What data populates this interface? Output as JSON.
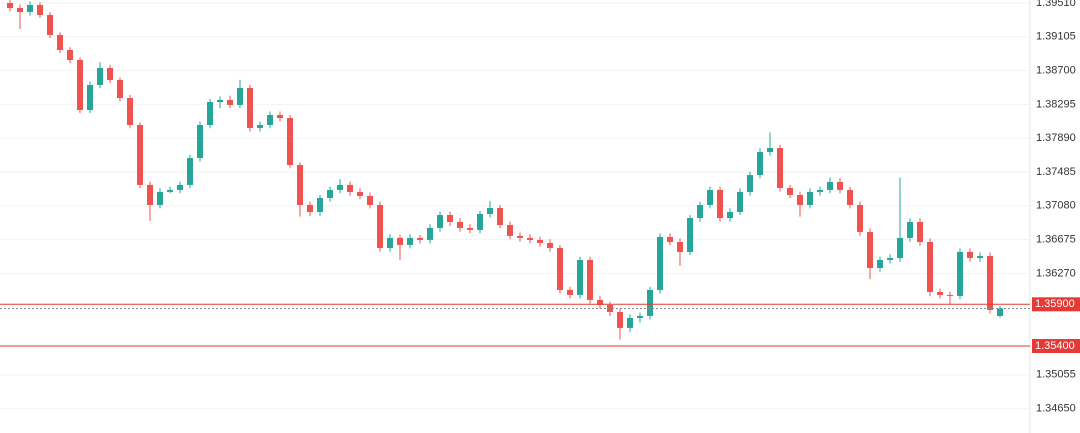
{
  "chart_data": {
    "type": "candlestick",
    "colors": {
      "up": "#26a69a",
      "down": "#ef5350",
      "level": "#e53935",
      "current": "#888888",
      "grid": "#f2f2f2"
    },
    "ylim": [
      1.34358,
      1.39546
    ],
    "yticks": [
      {
        "value": 1.3951,
        "label": "1.39510"
      },
      1.39105,
      {
        "value": 1.387,
        "label": "1.38700"
      },
      1.38295,
      {
        "value": 1.3789,
        "label": "1.37890"
      },
      1.37485,
      {
        "value": 1.3708,
        "label": "1.37080"
      },
      1.36675,
      {
        "value": 1.3627,
        "label": "1.36270"
      },
      1.35055,
      {
        "value": 1.3465,
        "label": "1.34650"
      }
    ],
    "grid": true,
    "levels": [
      {
        "value": 1.359,
        "label": "1.35900"
      },
      {
        "value": 1.354,
        "label": "1.35400"
      }
    ],
    "current_price": 1.3585,
    "candles": [
      [
        1.3951,
        1.39546,
        1.3941,
        1.3945
      ],
      [
        1.3945,
        1.3949,
        1.392,
        1.39402
      ],
      [
        1.39402,
        1.3953,
        1.3936,
        1.39486
      ],
      [
        1.39486,
        1.3952,
        1.3933,
        1.39366
      ],
      [
        1.39366,
        1.394,
        1.3909,
        1.39127
      ],
      [
        1.39127,
        1.3916,
        1.3891,
        1.38947
      ],
      [
        1.38947,
        1.3898,
        1.3879,
        1.38827
      ],
      [
        1.38827,
        1.3886,
        1.3819,
        1.38228
      ],
      [
        1.38228,
        1.3857,
        1.3819,
        1.38528
      ],
      [
        1.38528,
        1.388,
        1.3849,
        1.38731
      ],
      [
        1.38731,
        1.3877,
        1.3855,
        1.38588
      ],
      [
        1.38588,
        1.3862,
        1.3833,
        1.38372
      ],
      [
        1.38372,
        1.3841,
        1.3801,
        1.38048
      ],
      [
        1.38048,
        1.3808,
        1.3729,
        1.3733
      ],
      [
        1.3733,
        1.3737,
        1.369,
        1.3709
      ],
      [
        1.3709,
        1.3729,
        1.3705,
        1.37246
      ],
      [
        1.37246,
        1.3731,
        1.3723,
        1.3727
      ],
      [
        1.3727,
        1.3737,
        1.3723,
        1.3733
      ],
      [
        1.3733,
        1.3769,
        1.3729,
        1.37653
      ],
      [
        1.37653,
        1.3809,
        1.3761,
        1.38048
      ],
      [
        1.38048,
        1.3836,
        1.3801,
        1.38324
      ],
      [
        1.38324,
        1.3839,
        1.3825,
        1.38348
      ],
      [
        1.38348,
        1.384,
        1.3825,
        1.38288
      ],
      [
        1.38288,
        1.3859,
        1.3825,
        1.38492
      ],
      [
        1.38492,
        1.3853,
        1.3797,
        1.38013
      ],
      [
        1.38013,
        1.3809,
        1.3797,
        1.38048
      ],
      [
        1.38048,
        1.3821,
        1.3801,
        1.38168
      ],
      [
        1.38168,
        1.3821,
        1.3809,
        1.38132
      ],
      [
        1.38132,
        1.3817,
        1.3753,
        1.37569
      ],
      [
        1.37569,
        1.376,
        1.3695,
        1.3709
      ],
      [
        1.3709,
        1.3713,
        1.3696,
        1.37006
      ],
      [
        1.37006,
        1.3721,
        1.3696,
        1.37174
      ],
      [
        1.37174,
        1.3731,
        1.3713,
        1.3727
      ],
      [
        1.3727,
        1.374,
        1.3723,
        1.3733
      ],
      [
        1.3733,
        1.3737,
        1.372,
        1.37246
      ],
      [
        1.37246,
        1.3729,
        1.3716,
        1.37198
      ],
      [
        1.37198,
        1.3724,
        1.3705,
        1.3709
      ],
      [
        1.3709,
        1.3713,
        1.3653,
        1.36575
      ],
      [
        1.36575,
        1.3674,
        1.3653,
        1.36695
      ],
      [
        1.36695,
        1.3673,
        1.3643,
        1.36611
      ],
      [
        1.36611,
        1.3674,
        1.3657,
        1.36695
      ],
      [
        1.36695,
        1.3673,
        1.3663,
        1.36671
      ],
      [
        1.36671,
        1.3686,
        1.3663,
        1.36815
      ],
      [
        1.36815,
        1.3701,
        1.3677,
        1.3697
      ],
      [
        1.3697,
        1.3701,
        1.3684,
        1.36886
      ],
      [
        1.36886,
        1.3693,
        1.3677,
        1.36815
      ],
      [
        1.36815,
        1.3686,
        1.3675,
        1.36791
      ],
      [
        1.36791,
        1.3702,
        1.3675,
        1.36982
      ],
      [
        1.36982,
        1.3714,
        1.3694,
        1.37054
      ],
      [
        1.37054,
        1.3709,
        1.3681,
        1.3685
      ],
      [
        1.3685,
        1.3689,
        1.3668,
        1.36719
      ],
      [
        1.36719,
        1.3676,
        1.3665,
        1.36695
      ],
      [
        1.36695,
        1.3674,
        1.3663,
        1.36671
      ],
      [
        1.36671,
        1.3671,
        1.3659,
        1.36635
      ],
      [
        1.36635,
        1.3668,
        1.3653,
        1.36575
      ],
      [
        1.36575,
        1.3661,
        1.3603,
        1.36072
      ],
      [
        1.36072,
        1.3611,
        1.3597,
        1.36012
      ],
      [
        1.36012,
        1.3647,
        1.3597,
        1.36431
      ],
      [
        1.36431,
        1.3647,
        1.3591,
        1.35952
      ],
      [
        1.35952,
        1.36,
        1.3585,
        1.35892
      ],
      [
        1.35892,
        1.3593,
        1.3576,
        1.35808
      ],
      [
        1.35808,
        1.3585,
        1.3548,
        1.35617
      ],
      [
        1.35617,
        1.3578,
        1.3557,
        1.35736
      ],
      [
        1.35736,
        1.358,
        1.3568,
        1.3576
      ],
      [
        1.3576,
        1.3611,
        1.3572,
        1.36072
      ],
      [
        1.36072,
        1.3675,
        1.3603,
        1.36707
      ],
      [
        1.36707,
        1.3675,
        1.3661,
        1.36647
      ],
      [
        1.36647,
        1.3669,
        1.3636,
        1.36527
      ],
      [
        1.36527,
        1.3697,
        1.3649,
        1.36934
      ],
      [
        1.36934,
        1.3713,
        1.3689,
        1.3709
      ],
      [
        1.3709,
        1.3731,
        1.3705,
        1.3727
      ],
      [
        1.3727,
        1.3731,
        1.3689,
        1.36934
      ],
      [
        1.36934,
        1.3705,
        1.3689,
        1.37006
      ],
      [
        1.37006,
        1.3729,
        1.3697,
        1.37246
      ],
      [
        1.37246,
        1.3749,
        1.372,
        1.37449
      ],
      [
        1.37449,
        1.3777,
        1.3741,
        1.37725
      ],
      [
        1.37725,
        1.3796,
        1.3768,
        1.37773
      ],
      [
        1.37773,
        1.3781,
        1.3725,
        1.37294
      ],
      [
        1.37294,
        1.3733,
        1.3717,
        1.3721
      ],
      [
        1.3721,
        1.3725,
        1.3695,
        1.3709
      ],
      [
        1.3709,
        1.3729,
        1.3705,
        1.37246
      ],
      [
        1.37246,
        1.3731,
        1.372,
        1.3727
      ],
      [
        1.3727,
        1.3742,
        1.3723,
        1.37366
      ],
      [
        1.37366,
        1.3741,
        1.3723,
        1.3727
      ],
      [
        1.3727,
        1.3731,
        1.3705,
        1.3709
      ],
      [
        1.3709,
        1.3713,
        1.3672,
        1.36767
      ],
      [
        1.36767,
        1.3681,
        1.362,
        1.36335
      ],
      [
        1.36335,
        1.3647,
        1.3629,
        1.36431
      ],
      [
        1.36431,
        1.365,
        1.3639,
        1.36455
      ],
      [
        1.36455,
        1.3742,
        1.3641,
        1.36695
      ],
      [
        1.36695,
        1.3693,
        1.3665,
        1.36886
      ],
      [
        1.36886,
        1.3693,
        1.366,
        1.36647
      ],
      [
        1.36647,
        1.3669,
        1.36,
        1.36048
      ],
      [
        1.36048,
        1.3609,
        1.3597,
        1.36012
      ],
      [
        1.36012,
        1.3605,
        1.359,
        1.36
      ],
      [
        1.36,
        1.3657,
        1.3596,
        1.36527
      ],
      [
        1.36527,
        1.3657,
        1.3641,
        1.36455
      ],
      [
        1.36455,
        1.3652,
        1.3641,
        1.36479
      ],
      [
        1.36479,
        1.3652,
        1.3579,
        1.35832
      ],
      [
        1.3576,
        1.3588,
        1.3574,
        1.3585
      ]
    ]
  }
}
